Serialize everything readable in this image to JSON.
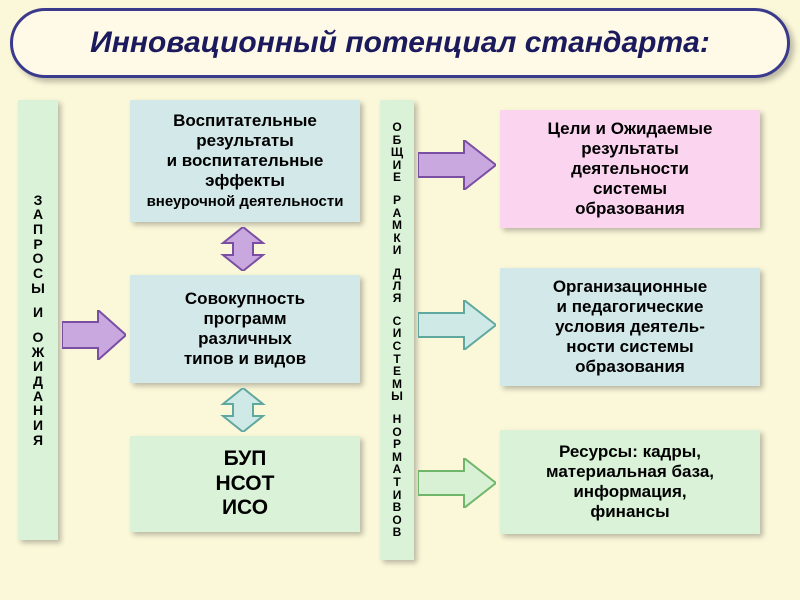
{
  "title": "Инновационный потенциал стандарта:",
  "colors": {
    "page_bg": "#fbf7d9",
    "banner_bg": "#fff9e8",
    "banner_border": "#3a3a8c",
    "title_text": "#1a1a5c",
    "box_cyan": "#d3e8e8",
    "box_pink": "#fbd4ef",
    "box_green": "#daf3d8",
    "arrow_purple_fill": "#c9a8e0",
    "arrow_purple_stroke": "#7a4fa3",
    "arrow_cyan_fill": "#cfe9e6",
    "arrow_cyan_stroke": "#5fa8a0",
    "arrow_green_fill": "#d8f0d4",
    "arrow_green_stroke": "#6fb66a"
  },
  "left_col": {
    "line1": "ЗАПРОСЫ",
    "line2": "И",
    "line3": "ОЖИДАНИЯ"
  },
  "mid_col": {
    "line1": "ОБЩИЕ",
    "line2": "РАМКИ",
    "line3": "ДЛЯ",
    "line4": "СИСТЕМЫ",
    "line5": "НОРМАТИВОВ"
  },
  "boxes": {
    "b1_l1": "Воспитательные",
    "b1_l2": "результаты",
    "b1_l3": "и воспитательные",
    "b1_l4": "эффекты",
    "b1_sub": "внеурочной деятельности",
    "b2_l1": "Совокупность",
    "b2_l2": "программ",
    "b2_l3": "различных",
    "b2_l4": "типов и видов",
    "b3_l1": "БУП",
    "b3_l2": "НСОТ",
    "b3_l3": "ИСО",
    "r1_l1": "Цели и Ожидаемые",
    "r1_l2": "результаты",
    "r1_l3": "деятельности",
    "r1_l4": "системы",
    "r1_l5": "образования",
    "r2_l1": "Организационные",
    "r2_l2": "и педагогические",
    "r2_l3": "условия деятель-",
    "r2_l4": "ности системы",
    "r2_l5": "образования",
    "r3_l1": "Ресурсы: кадры,",
    "r3_l2": "материальная база,",
    "r3_l3": "информация,",
    "r3_l4": "финансы"
  },
  "layout": {
    "title_fontsize": 30,
    "box_fontsize": 17,
    "vert_fontsize": 14
  }
}
